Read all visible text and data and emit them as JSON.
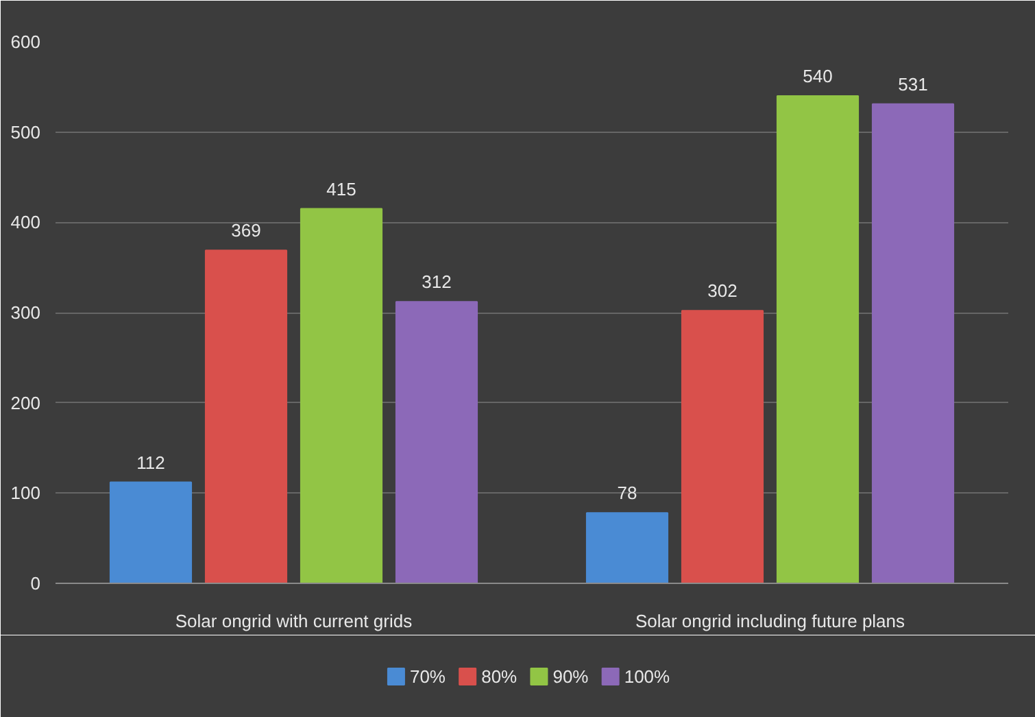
{
  "chart_data": {
    "type": "bar",
    "categories": [
      "Solar ongrid with current grids",
      "Solar ongrid including future plans"
    ],
    "series": [
      {
        "name": "70%",
        "color": "#4a8bd4",
        "values": [
          112,
          78
        ]
      },
      {
        "name": "80%",
        "color": "#d9504c",
        "values": [
          369,
          302
        ]
      },
      {
        "name": "90%",
        "color": "#92c545",
        "values": [
          415,
          540
        ]
      },
      {
        "name": "100%",
        "color": "#8c69b8",
        "values": [
          312,
          531
        ]
      }
    ],
    "ylim": [
      0,
      600
    ],
    "yticks": [
      0,
      100,
      200,
      300,
      400,
      500,
      600
    ],
    "grid": "y",
    "legend": "bottom",
    "data_labels": true
  }
}
